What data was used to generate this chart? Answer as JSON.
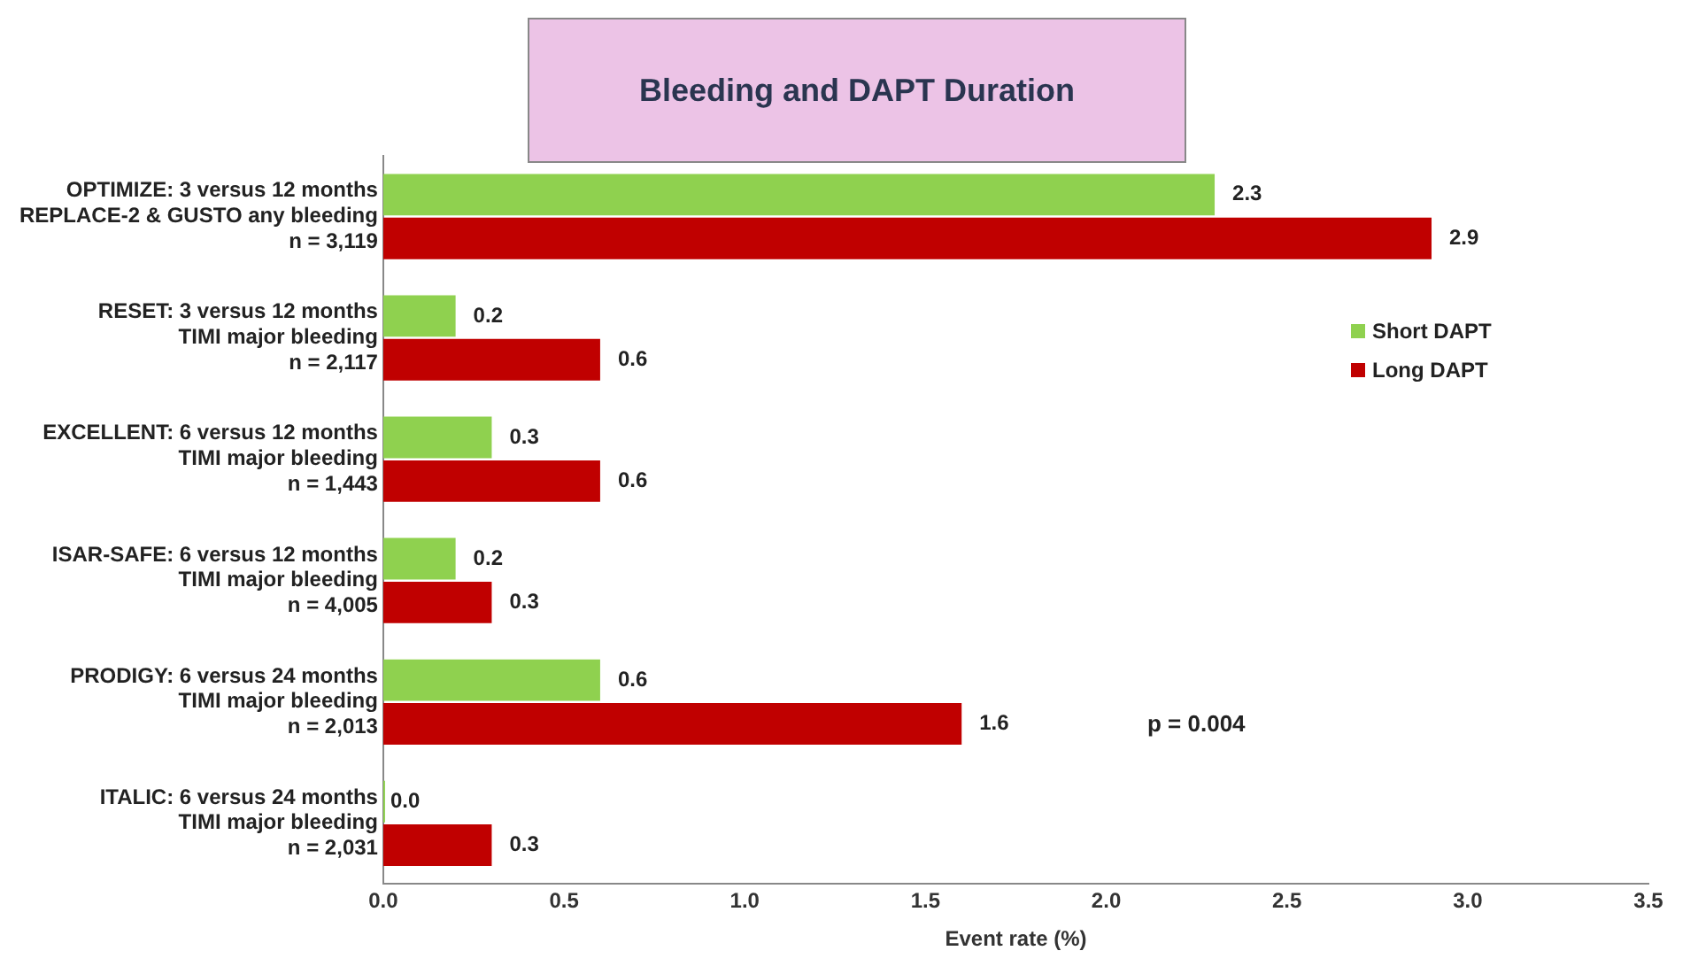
{
  "chart_data": {
    "type": "bar",
    "orientation": "horizontal",
    "title": "Bleeding and DAPT Duration",
    "xlabel": "Event rate (%)",
    "categories": [
      "OPTIMIZE: 3 versus 12 months\nREPLACE-2 & GUSTO any bleeding\nn = 3,119",
      "RESET: 3 versus 12 months\nTIMI major bleeding\nn = 2,117",
      "EXCELLENT: 6 versus 12 months\nTIMI major bleeding\nn = 1,443",
      "ISAR-SAFE: 6 versus 12 months\nTIMI major bleeding\nn = 4,005",
      "PRODIGY: 6 versus 24 months\nTIMI major bleeding\nn = 2,013",
      "ITALIC: 6 versus 24 months\nTIMI major bleeding\nn = 2,031"
    ],
    "series": [
      {
        "name": "Short DAPT",
        "color": "#8fd14f",
        "values": [
          2.3,
          0.2,
          0.3,
          0.2,
          0.6,
          0
        ],
        "value_labels": [
          "2.3",
          "0.2",
          "0.3",
          "0.2",
          "0.6",
          "0.0"
        ]
      },
      {
        "name": "Long DAPT",
        "color": "#c00000",
        "values": [
          2.9,
          0.6,
          0.6,
          0.3,
          1.6,
          0.3
        ],
        "value_labels": [
          "2.9",
          "0.6",
          "0.6",
          "0.3",
          "1.6",
          "0.3"
        ]
      }
    ],
    "xlim": [
      0,
      3.5
    ],
    "xticks": [
      {
        "value": 0,
        "label": "0.0"
      },
      {
        "value": 0.5,
        "label": "0.5"
      },
      {
        "value": 1,
        "label": "1.0"
      },
      {
        "value": 1.5,
        "label": "1.5"
      },
      {
        "value": 2,
        "label": "2.0"
      },
      {
        "value": 2.5,
        "label": "2.5"
      },
      {
        "value": 3,
        "label": "3.0"
      },
      {
        "value": 3.5,
        "label": "3.5"
      }
    ],
    "annotations": [
      "p = 0.004"
    ],
    "legend": "right",
    "grid": false
  }
}
